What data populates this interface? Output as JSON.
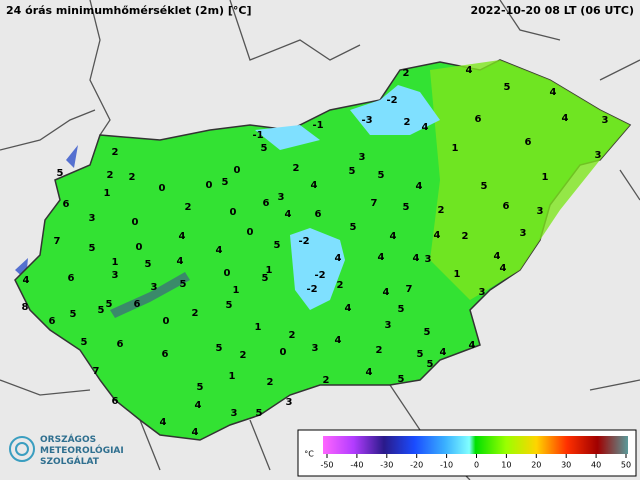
{
  "header": {
    "title": "24 órás minimumhőmérséklet (2m) [°C]",
    "timestamp": "2022-10-20 08 LT  (06 UTC)"
  },
  "stations": [
    2,
    4,
    -2,
    5,
    4,
    -1,
    -3,
    2,
    4,
    6,
    4,
    3,
    -1,
    5,
    2,
    3,
    1,
    6,
    3,
    5,
    2,
    2,
    0,
    2,
    5,
    5,
    1,
    1,
    0,
    0,
    5,
    4,
    4,
    5,
    6,
    6,
    3,
    7,
    5,
    2,
    6,
    3,
    3,
    0,
    2,
    0,
    4,
    6,
    5,
    7,
    4,
    0,
    -2,
    4,
    4,
    2,
    3,
    5,
    0,
    4,
    5,
    4,
    4,
    1,
    5,
    4,
    1,
    -2,
    4,
    4,
    3,
    4,
    6,
    4,
    3,
    3,
    5,
    0,
    5,
    1,
    1,
    -2,
    2,
    4,
    7,
    3,
    8,
    5,
    5,
    6,
    5,
    5,
    4,
    5,
    6,
    0,
    2,
    1,
    3,
    5,
    2,
    5,
    6,
    4,
    5,
    2,
    3,
    2,
    5,
    4,
    4,
    7,
    6,
    0,
    1,
    2,
    4,
    5,
    6,
    5,
    2,
    5,
    4,
    4,
    3,
    5,
    3,
    4
  ],
  "colorbar": {
    "unit": "°C",
    "ticks": [
      -50,
      -40,
      -30,
      -20,
      -10,
      0,
      10,
      20,
      30,
      40,
      50
    ]
  },
  "logo": {
    "lines": [
      "ORSZÁGOS",
      "METEOROLÓGIAI",
      "SZOLGÁLAT"
    ]
  }
}
